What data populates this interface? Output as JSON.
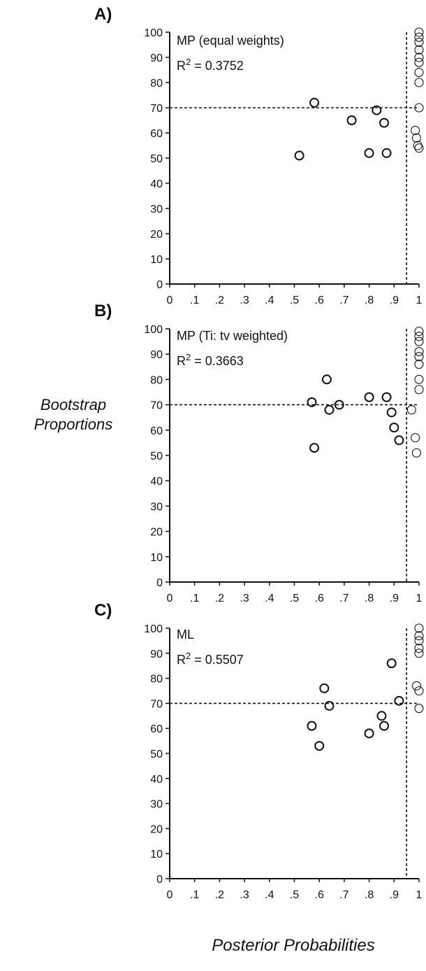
{
  "figure": {
    "ylabel_line1": "Bootstrap",
    "ylabel_line2": "Proportions",
    "xlabel": "Posterior Probabilities"
  },
  "chart_data": [
    {
      "type": "scatter",
      "panel_label": "A)",
      "annotation": "MP (equal weights)",
      "r2_prefix": "R",
      "r2_exp": "2",
      "r2_value": " = 0.3752",
      "xlim": [
        0,
        1
      ],
      "ylim": [
        0,
        100
      ],
      "xticks": [
        0,
        0.1,
        0.2,
        0.3,
        0.4,
        0.5,
        0.6,
        0.7,
        0.8,
        0.9,
        1
      ],
      "xticklabels": [
        "0",
        ".1",
        ".2",
        ".3",
        ".4",
        ".5",
        ".6",
        ".7",
        ".8",
        ".9",
        "1"
      ],
      "yticks": [
        0,
        10,
        20,
        30,
        40,
        50,
        60,
        70,
        80,
        90,
        100
      ],
      "yticklabels": [
        "0",
        "10",
        "20",
        "30",
        "40",
        "50",
        "60",
        "70",
        "80",
        "90",
        "100"
      ],
      "hline": 70,
      "vline": 0.95,
      "points": [
        {
          "x": 0.52,
          "y": 51
        },
        {
          "x": 0.58,
          "y": 72
        },
        {
          "x": 0.73,
          "y": 65
        },
        {
          "x": 0.8,
          "y": 52
        },
        {
          "x": 0.83,
          "y": 69
        },
        {
          "x": 0.86,
          "y": 64
        },
        {
          "x": 0.87,
          "y": 52
        },
        {
          "x": 0.985,
          "y": 61
        },
        {
          "x": 0.99,
          "y": 58
        },
        {
          "x": 0.995,
          "y": 55
        },
        {
          "x": 1.0,
          "y": 54
        },
        {
          "x": 1.0,
          "y": 70
        },
        {
          "x": 1.0,
          "y": 80
        },
        {
          "x": 1.0,
          "y": 84
        },
        {
          "x": 1.0,
          "y": 88
        },
        {
          "x": 1.0,
          "y": 90
        },
        {
          "x": 1.0,
          "y": 93
        },
        {
          "x": 1.0,
          "y": 96
        },
        {
          "x": 1.0,
          "y": 98
        },
        {
          "x": 1.0,
          "y": 100
        }
      ]
    },
    {
      "type": "scatter",
      "panel_label": "B)",
      "annotation": "MP (Ti: tv weighted)",
      "r2_prefix": "R",
      "r2_exp": "2",
      "r2_value": " = 0.3663",
      "xlim": [
        0,
        1
      ],
      "ylim": [
        0,
        100
      ],
      "xticks": [
        0,
        0.1,
        0.2,
        0.3,
        0.4,
        0.5,
        0.6,
        0.7,
        0.8,
        0.9,
        1
      ],
      "xticklabels": [
        "0",
        ".1",
        ".2",
        ".3",
        ".4",
        ".5",
        ".6",
        ".7",
        ".8",
        ".9",
        "1"
      ],
      "yticks": [
        0,
        10,
        20,
        30,
        40,
        50,
        60,
        70,
        80,
        90,
        100
      ],
      "yticklabels": [
        "0",
        "10",
        "20",
        "30",
        "40",
        "50",
        "60",
        "70",
        "80",
        "90",
        "100"
      ],
      "hline": 70,
      "vline": 0.95,
      "points": [
        {
          "x": 0.57,
          "y": 71
        },
        {
          "x": 0.58,
          "y": 53
        },
        {
          "x": 0.63,
          "y": 80
        },
        {
          "x": 0.64,
          "y": 68
        },
        {
          "x": 0.68,
          "y": 70
        },
        {
          "x": 0.8,
          "y": 73
        },
        {
          "x": 0.87,
          "y": 73
        },
        {
          "x": 0.89,
          "y": 67
        },
        {
          "x": 0.9,
          "y": 61
        },
        {
          "x": 0.92,
          "y": 56
        },
        {
          "x": 0.97,
          "y": 68
        },
        {
          "x": 0.985,
          "y": 57
        },
        {
          "x": 0.99,
          "y": 51
        },
        {
          "x": 1.0,
          "y": 76
        },
        {
          "x": 1.0,
          "y": 80
        },
        {
          "x": 1.0,
          "y": 86
        },
        {
          "x": 1.0,
          "y": 89
        },
        {
          "x": 1.0,
          "y": 91
        },
        {
          "x": 1.0,
          "y": 95
        },
        {
          "x": 1.0,
          "y": 97
        },
        {
          "x": 1.0,
          "y": 99
        }
      ]
    },
    {
      "type": "scatter",
      "panel_label": "C)",
      "annotation": "ML",
      "r2_prefix": "R",
      "r2_exp": "2",
      "r2_value": " = 0.5507",
      "xlim": [
        0,
        1
      ],
      "ylim": [
        0,
        100
      ],
      "xticks": [
        0,
        0.1,
        0.2,
        0.3,
        0.4,
        0.5,
        0.6,
        0.7,
        0.8,
        0.9,
        1
      ],
      "xticklabels": [
        "0",
        ".1",
        ".2",
        ".3",
        ".4",
        ".5",
        ".6",
        ".7",
        ".8",
        ".9",
        "1"
      ],
      "yticks": [
        0,
        10,
        20,
        30,
        40,
        50,
        60,
        70,
        80,
        90,
        100
      ],
      "yticklabels": [
        "0",
        "10",
        "20",
        "30",
        "40",
        "50",
        "60",
        "70",
        "80",
        "90",
        "100"
      ],
      "hline": 70,
      "vline": 0.95,
      "points": [
        {
          "x": 0.57,
          "y": 61
        },
        {
          "x": 0.6,
          "y": 53
        },
        {
          "x": 0.62,
          "y": 76
        },
        {
          "x": 0.64,
          "y": 69
        },
        {
          "x": 0.8,
          "y": 58
        },
        {
          "x": 0.85,
          "y": 65
        },
        {
          "x": 0.86,
          "y": 61
        },
        {
          "x": 0.89,
          "y": 86
        },
        {
          "x": 0.92,
          "y": 71
        },
        {
          "x": 1.0,
          "y": 68
        },
        {
          "x": 1.0,
          "y": 75
        },
        {
          "x": 0.99,
          "y": 77
        },
        {
          "x": 1.0,
          "y": 90
        },
        {
          "x": 1.0,
          "y": 92
        },
        {
          "x": 1.0,
          "y": 95
        },
        {
          "x": 1.0,
          "y": 97
        },
        {
          "x": 1.0,
          "y": 100
        }
      ]
    }
  ]
}
